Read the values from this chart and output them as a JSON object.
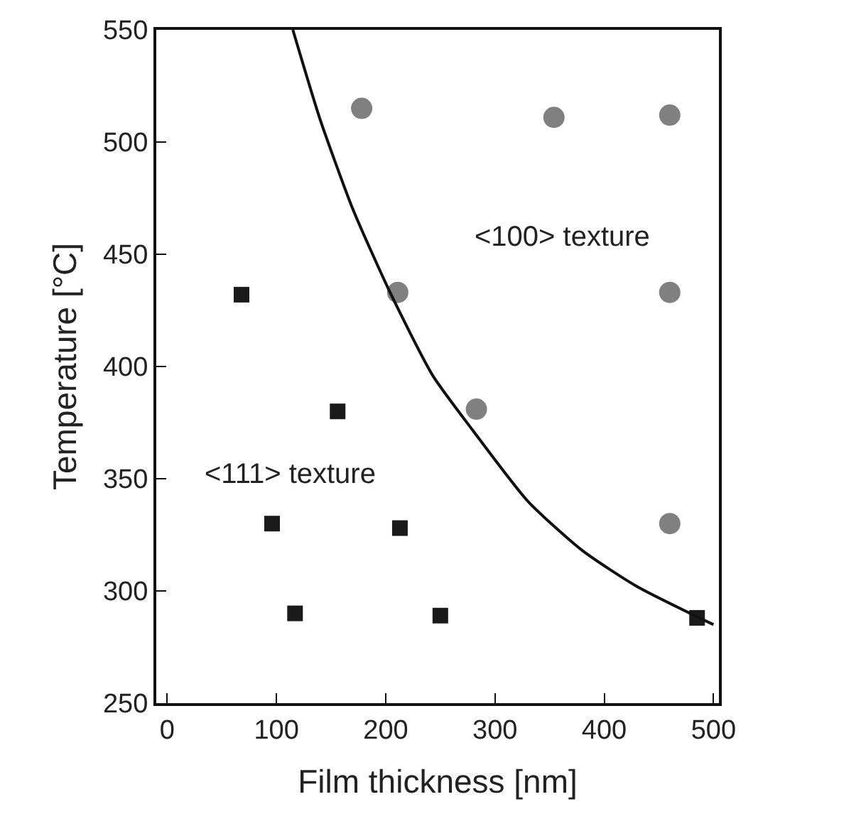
{
  "chart_data": {
    "type": "scatter",
    "xlabel": "Film thickness [nm]",
    "ylabel": "Temperature [°C]",
    "xlim": [
      -10,
      505
    ],
    "xticks": [
      0,
      100,
      200,
      300,
      400,
      500
    ],
    "ylim": [
      250,
      550
    ],
    "yticks": [
      250,
      300,
      350,
      400,
      450,
      500,
      550
    ],
    "annotations": [
      "<100> texture",
      "<111> texture"
    ],
    "series": [
      {
        "type": "scatter",
        "marker": "square",
        "color": "#1a1a1a",
        "x": [
          68,
          96,
          117,
          156,
          213,
          250,
          485
        ],
        "values": [
          432,
          330,
          290,
          380,
          328,
          289,
          288
        ]
      },
      {
        "type": "scatter",
        "marker": "circle",
        "color": "#808080",
        "x": [
          178,
          211,
          283,
          354,
          460,
          460,
          460
        ],
        "values": [
          515,
          433,
          381,
          511,
          512,
          433,
          330
        ]
      },
      {
        "type": "line",
        "marker": "none",
        "line_style": "solid",
        "color": "#111111",
        "x": [
          115,
          140,
          170,
          204,
          243,
          279,
          330,
          380,
          430,
          500
        ],
        "values": [
          550,
          510,
          470,
          433,
          396,
          372,
          340,
          318,
          302,
          285
        ]
      }
    ]
  }
}
